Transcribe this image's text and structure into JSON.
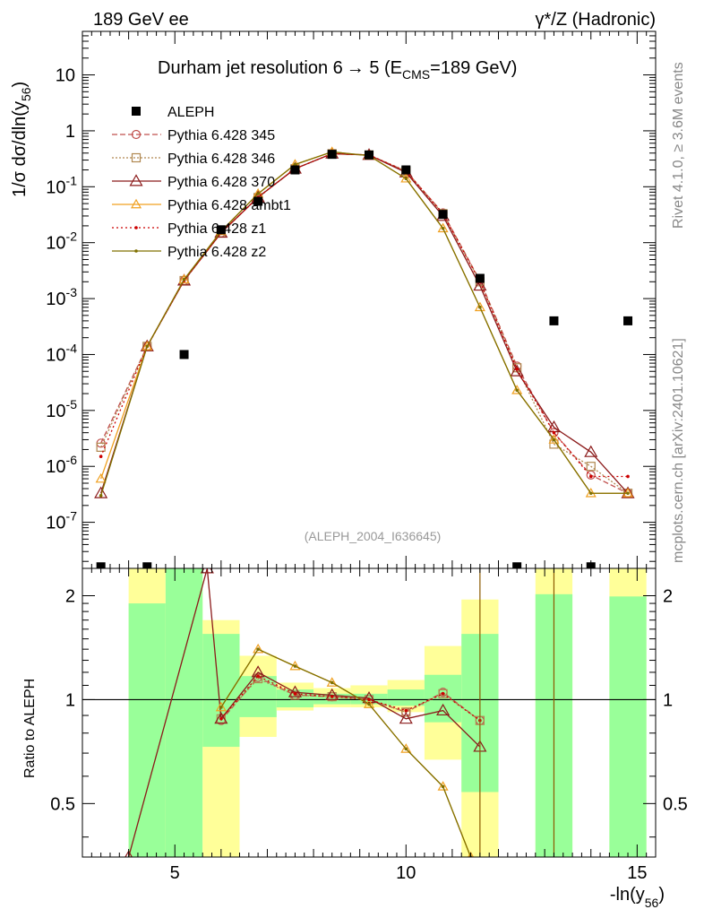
{
  "header": {
    "left": "189 GeV ee",
    "right": "γ*/Z (Hadronic)"
  },
  "side_text": {
    "rivet": "Rivet 4.1.0, ≥ 3.6M events",
    "mcplots": "mcplots.cern.ch [arXiv:2401.10621]"
  },
  "chart_data": [
    {
      "type": "scatter",
      "title": "Durham jet resolution 6→ 5 (E_CMS=189 GeV)",
      "title_parts": {
        "main": "Durham jet resolution 6",
        "arrow": "→",
        "after": " 5 (E",
        "sub": "CMS",
        "tail": "=189 GeV)"
      },
      "ylabel": "1/σ dσ/dln(y56)",
      "ylabel_parts": {
        "main": "1/σ  dσ/dln(y",
        "sub": "56",
        "tail": ")"
      },
      "yscale": "log",
      "xlim": [
        3.0,
        15.4
      ],
      "ylim": [
        1.5e-08,
        60
      ],
      "y_ticks": [
        "10",
        "1",
        "10^-1",
        "10^-2",
        "10^-3",
        "10^-4",
        "10^-5",
        "10^-6",
        "10^-7"
      ],
      "watermark": "(ALEPH_2004_I636645)",
      "legend_position": "top-left",
      "data_series": {
        "name": "ALEPH",
        "x": [
          3.4,
          4.4,
          5.2,
          6.0,
          6.8,
          7.6,
          8.4,
          9.2,
          10.0,
          10.8,
          11.6,
          12.4,
          13.2,
          14.0,
          14.8
        ],
        "y": [
          1.6e-08,
          1.6e-08,
          0.0001,
          0.017,
          0.055,
          0.2,
          0.38,
          0.37,
          0.2,
          0.032,
          0.0023,
          1.6e-08,
          0.0004,
          1.6e-08,
          0.0004
        ]
      },
      "series": [
        {
          "name": "Pythia 6.428 345",
          "color": "#c0504d",
          "dash": "6,3",
          "marker": "circle",
          "x": [
            3.4,
            4.4,
            5.2,
            6.0,
            6.8,
            7.6,
            8.4,
            9.2,
            10.0,
            10.8,
            11.6,
            12.4,
            13.2,
            14.0,
            14.8
          ],
          "y": [
            2.6e-06,
            0.00014,
            0.0021,
            0.015,
            0.065,
            0.21,
            0.39,
            0.37,
            0.19,
            0.034,
            0.0021,
            6.2e-05,
            4e-06,
            7e-07,
            3.3e-07
          ]
        },
        {
          "name": "Pythia 6.428 346",
          "color": "#b08850",
          "dash": "2,2",
          "marker": "square",
          "x": [
            3.4,
            4.4,
            5.2,
            6.0,
            6.8,
            7.6,
            8.4,
            9.2,
            10.0,
            10.8,
            11.6,
            12.4,
            13.2,
            14.0,
            14.8
          ],
          "y": [
            2.2e-06,
            0.00014,
            0.0021,
            0.015,
            0.064,
            0.21,
            0.39,
            0.37,
            0.19,
            0.033,
            0.002,
            5.8e-05,
            2.5e-06,
            1e-06,
            3.3e-07
          ]
        },
        {
          "name": "Pythia 6.428 370",
          "color": "#8b1a1a",
          "dash": "",
          "marker": "triangle",
          "x": [
            3.4,
            4.4,
            5.2,
            6.0,
            6.8,
            7.6,
            8.4,
            9.2,
            10.0,
            10.8,
            11.6,
            12.4,
            13.2,
            14.0,
            14.8
          ],
          "y": [
            3.3e-07,
            0.00014,
            0.0021,
            0.015,
            0.065,
            0.21,
            0.39,
            0.37,
            0.18,
            0.03,
            0.0017,
            5e-05,
            5e-06,
            1.8e-06,
            3.3e-07
          ]
        },
        {
          "name": "Pythia 6.428 ambt1",
          "color": "#f0a020",
          "dash": "",
          "marker": "triangle-open",
          "x": [
            3.4,
            4.4,
            5.2,
            6.0,
            6.8,
            7.6,
            8.4,
            9.2,
            10.0,
            10.8,
            11.6,
            12.4,
            13.2,
            14.0,
            14.8
          ],
          "y": [
            6e-07,
            0.00014,
            0.0022,
            0.016,
            0.075,
            0.25,
            0.42,
            0.36,
            0.14,
            0.018,
            0.0007,
            2.3e-05,
            3e-06,
            3.3e-07,
            3.3e-07
          ]
        },
        {
          "name": "Pythia 6.428 z1",
          "color": "#cc0000",
          "dash": "2,3",
          "marker": "dot",
          "x": [
            3.4,
            4.4,
            5.2,
            6.0,
            6.8,
            7.6,
            8.4,
            9.2,
            10.0,
            10.8,
            11.6,
            12.4,
            13.2,
            14.0,
            14.8
          ],
          "y": [
            1.5e-06,
            0.00014,
            0.0021,
            0.015,
            0.065,
            0.21,
            0.39,
            0.37,
            0.19,
            0.033,
            0.002,
            5.5e-05,
            4e-06,
            6.6e-07,
            6.6e-07
          ]
        },
        {
          "name": "Pythia 6.428 z2",
          "color": "#807000",
          "dash": "",
          "marker": "dot",
          "x": [
            3.4,
            4.4,
            5.2,
            6.0,
            6.8,
            7.6,
            8.4,
            9.2,
            10.0,
            10.8,
            11.6,
            12.4,
            13.2,
            14.0,
            14.8
          ],
          "y": [
            3e-07,
            0.00014,
            0.0022,
            0.016,
            0.075,
            0.25,
            0.42,
            0.36,
            0.14,
            0.018,
            0.0007,
            2.3e-05,
            3e-06,
            3.3e-07,
            3.3e-07
          ]
        }
      ]
    },
    {
      "type": "line",
      "ylabel": "Ratio to ALEPH",
      "xlabel": "-ln(y56)",
      "xlabel_parts": {
        "main": "-ln(y",
        "sub": "56",
        "tail": ")"
      },
      "yscale": "log",
      "xlim": [
        3.0,
        15.4
      ],
      "ylim": [
        0.35,
        2.4
      ],
      "x_ticks": [
        "5",
        "10",
        "15"
      ],
      "y_ticks": [
        "0.5",
        "1",
        "2"
      ],
      "bands": [
        {
          "x0": 4.0,
          "x1": 4.8,
          "green": [
            0.35,
            1.9
          ],
          "yellow": [
            0.35,
            2.4
          ]
        },
        {
          "x0": 4.8,
          "x1": 5.6,
          "green": [
            0.35,
            2.4
          ],
          "yellow": [
            0.35,
            2.4
          ]
        },
        {
          "x0": 5.6,
          "x1": 6.4,
          "green": [
            0.73,
            1.55
          ],
          "yellow": [
            0.35,
            1.7
          ]
        },
        {
          "x0": 6.4,
          "x1": 7.2,
          "green": [
            0.89,
            1.17
          ],
          "yellow": [
            0.78,
            1.34
          ]
        },
        {
          "x0": 7.2,
          "x1": 8.0,
          "green": [
            0.95,
            1.07
          ],
          "yellow": [
            0.93,
            1.12
          ]
        },
        {
          "x0": 8.0,
          "x1": 8.8,
          "green": [
            0.97,
            1.04
          ],
          "yellow": [
            0.95,
            1.08
          ]
        },
        {
          "x0": 8.8,
          "x1": 9.6,
          "green": [
            0.97,
            1.04
          ],
          "yellow": [
            0.95,
            1.1
          ]
        },
        {
          "x0": 9.6,
          "x1": 10.4,
          "green": [
            0.96,
            1.07
          ],
          "yellow": [
            0.92,
            1.14
          ]
        },
        {
          "x0": 10.4,
          "x1": 11.2,
          "green": [
            0.86,
            1.18
          ],
          "yellow": [
            0.67,
            1.43
          ]
        },
        {
          "x0": 11.2,
          "x1": 12.0,
          "green": [
            0.54,
            1.55
          ],
          "yellow": [
            0.35,
            1.95
          ]
        },
        {
          "x0": 12.8,
          "x1": 13.6,
          "green": [
            0.35,
            2.02
          ],
          "yellow": [
            0.35,
            2.4
          ]
        },
        {
          "x0": 14.4,
          "x1": 15.2,
          "green": [
            0.35,
            1.99
          ],
          "yellow": [
            0.35,
            2.4
          ]
        }
      ],
      "series": [
        {
          "name": "Pythia 6.428 345",
          "color": "#c0504d",
          "dash": "6,3",
          "marker": "circle",
          "x": [
            6.0,
            6.8,
            7.6,
            8.4,
            9.2,
            10.0,
            10.8,
            11.6
          ],
          "y": [
            0.87,
            1.16,
            1.03,
            1.02,
            1.0,
            0.92,
            1.05,
            0.87
          ]
        },
        {
          "name": "Pythia 6.428 346",
          "color": "#b08850",
          "dash": "2,2",
          "marker": "square",
          "x": [
            6.0,
            6.8,
            7.6,
            8.4,
            9.2,
            10.0,
            10.8,
            11.6
          ],
          "y": [
            0.88,
            1.15,
            1.03,
            1.02,
            1.0,
            0.92,
            1.04,
            0.87
          ]
        },
        {
          "name": "Pythia 6.428 370",
          "color": "#8b1a1a",
          "dash": "",
          "marker": "triangle",
          "x": [
            4.0,
            5.7,
            6.0,
            6.8,
            7.6,
            8.4,
            9.2,
            10.0,
            10.8,
            11.6
          ],
          "y": [
            0.35,
            2.4,
            0.88,
            1.2,
            1.05,
            1.03,
            1.01,
            0.88,
            0.93,
            0.73
          ]
        },
        {
          "name": "Pythia 6.428 ambt1",
          "color": "#f0a020",
          "dash": "",
          "marker": "triangle-open",
          "x": [
            6.0,
            6.8,
            7.6,
            8.4,
            9.2,
            10.0,
            10.8,
            11.4
          ],
          "y": [
            0.95,
            1.4,
            1.25,
            1.12,
            0.97,
            0.72,
            0.56,
            0.35
          ]
        },
        {
          "name": "Pythia 6.428 z1",
          "color": "#cc0000",
          "dash": "2,3",
          "marker": "dot",
          "x": [
            6.0,
            6.8,
            7.6,
            8.4,
            9.2,
            10.0,
            10.8,
            11.6
          ],
          "y": [
            0.88,
            1.17,
            1.04,
            1.02,
            1.0,
            0.93,
            1.04,
            0.87
          ]
        },
        {
          "name": "Pythia 6.428 z2",
          "color": "#807000",
          "dash": "",
          "marker": "dot",
          "x": [
            6.0,
            6.8,
            7.6,
            8.4,
            9.2,
            10.0,
            10.8,
            11.4
          ],
          "y": [
            0.95,
            1.4,
            1.25,
            1.12,
            0.97,
            0.72,
            0.56,
            0.35
          ]
        }
      ]
    }
  ]
}
